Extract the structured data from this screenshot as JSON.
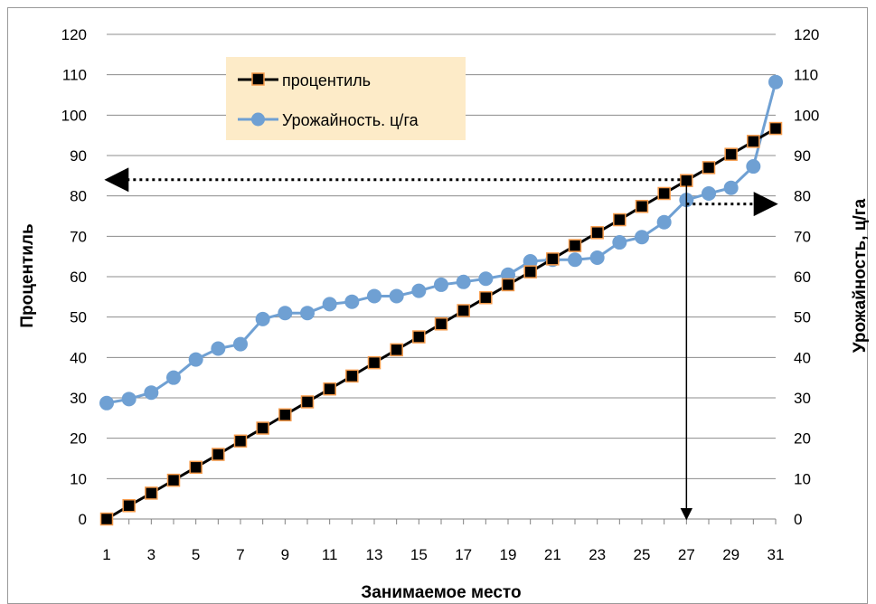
{
  "chart_data": {
    "type": "line",
    "xlabel": "Занимаемое место",
    "ylabel_left": "Процентиль",
    "ylabel_right": "Урожайность, ц/га",
    "ylim": [
      0,
      120
    ],
    "y_ticks": [
      "0",
      "10",
      "20",
      "30",
      "40",
      "50",
      "60",
      "70",
      "80",
      "90",
      "100",
      "110",
      "120"
    ],
    "x_ticks": [
      "1",
      "3",
      "5",
      "7",
      "9",
      "11",
      "13",
      "15",
      "17",
      "19",
      "21",
      "23",
      "25",
      "27",
      "29",
      "31"
    ],
    "x": [
      1,
      2,
      3,
      4,
      5,
      6,
      7,
      8,
      9,
      10,
      11,
      12,
      13,
      14,
      15,
      16,
      17,
      18,
      19,
      20,
      21,
      22,
      23,
      24,
      25,
      26,
      27,
      28,
      29,
      30,
      31
    ],
    "grid": "horizontal",
    "legend_position": "top-left",
    "series": [
      {
        "name": "процентиль",
        "color": "#000000",
        "marker_fill": "#000000",
        "marker_stroke": "#f59a4a",
        "marker": "square",
        "values": [
          0,
          3.3,
          6.4,
          9.6,
          12.8,
          16,
          19.3,
          22.5,
          25.8,
          29,
          32.2,
          35.4,
          38.7,
          41.9,
          45.1,
          48.3,
          51.6,
          54.8,
          58,
          61.2,
          64.4,
          67.7,
          70.9,
          74.1,
          77.4,
          80.6,
          83.8,
          87,
          90.3,
          93.5,
          96.7
        ]
      },
      {
        "name": "Урожайность. ц/га",
        "color": "#6fa0d3",
        "marker_fill": "#6fa0d3",
        "marker": "circle",
        "values": [
          28.7,
          29.7,
          31.3,
          35,
          39.5,
          42.2,
          43.3,
          49.5,
          51,
          51,
          53.2,
          53.8,
          55.2,
          55.2,
          56.5,
          58,
          58.7,
          59.5,
          60.5,
          63.8,
          64.2,
          64.2,
          64.7,
          68.5,
          69.8,
          73.5,
          79,
          80.6,
          82,
          87.3,
          108.2
        ]
      }
    ],
    "annotations": [
      {
        "type": "arrow",
        "from": [
          27,
          84
        ],
        "to": [
          1,
          84
        ],
        "style": "dotted",
        "meaning": "percentile reading"
      },
      {
        "type": "arrow",
        "from": [
          27,
          78
        ],
        "to": [
          31,
          78
        ],
        "style": "dotted",
        "meaning": "yield reading"
      },
      {
        "type": "arrow",
        "from": [
          27,
          84
        ],
        "to": [
          27,
          0
        ],
        "style": "solid",
        "meaning": "rank 27"
      }
    ]
  }
}
